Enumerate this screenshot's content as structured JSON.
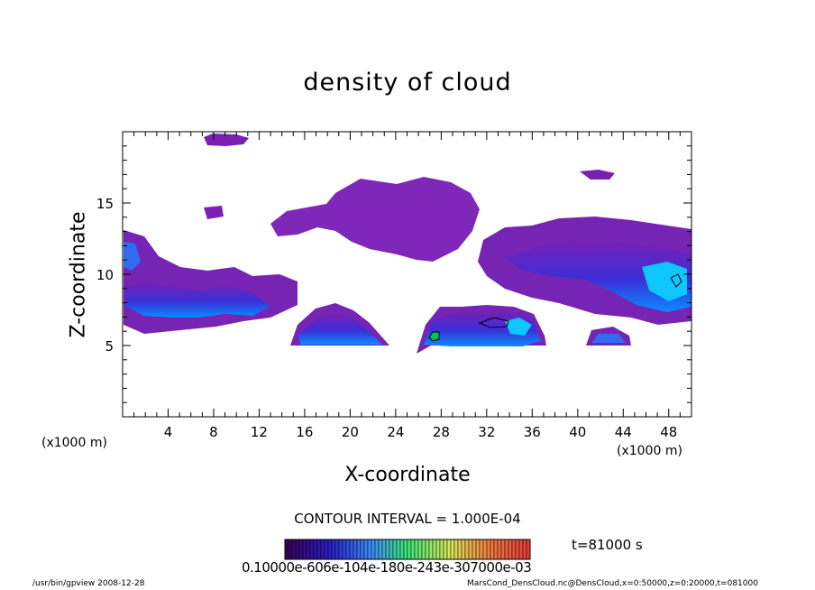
{
  "chart_data": {
    "type": "heatmap",
    "title": "density of cloud",
    "xlabel": "X-coordinate",
    "ylabel": "Z-coordinate",
    "x_unit_label": "(x1000 m)",
    "xlim": [
      0,
      50
    ],
    "ylim": [
      0,
      20
    ],
    "x_ticks": [
      "4",
      "8",
      "12",
      "16",
      "20",
      "24",
      "28",
      "32",
      "36",
      "40",
      "44",
      "48"
    ],
    "y_ticks": [
      "5",
      "10",
      "15"
    ],
    "contour_interval": "CONTOUR INTERVAL = 1.000E-04",
    "time_label": "t=81000 s",
    "colorbar_labels": "0.10000e-606e-104e-180e-243e-307000e-03",
    "colors": {
      "low": "#7a1fb3",
      "mid": "#3a2fd8",
      "high": "#0a8cff",
      "peak": "#00d9ff",
      "contour": "#00c060"
    }
  },
  "footer": {
    "left": "/usr/bin/gpview   2008-12-28",
    "right": "MarsCond_DensCloud.nc@DensCloud,x=0:50000,z=0:20000,t=081000"
  }
}
